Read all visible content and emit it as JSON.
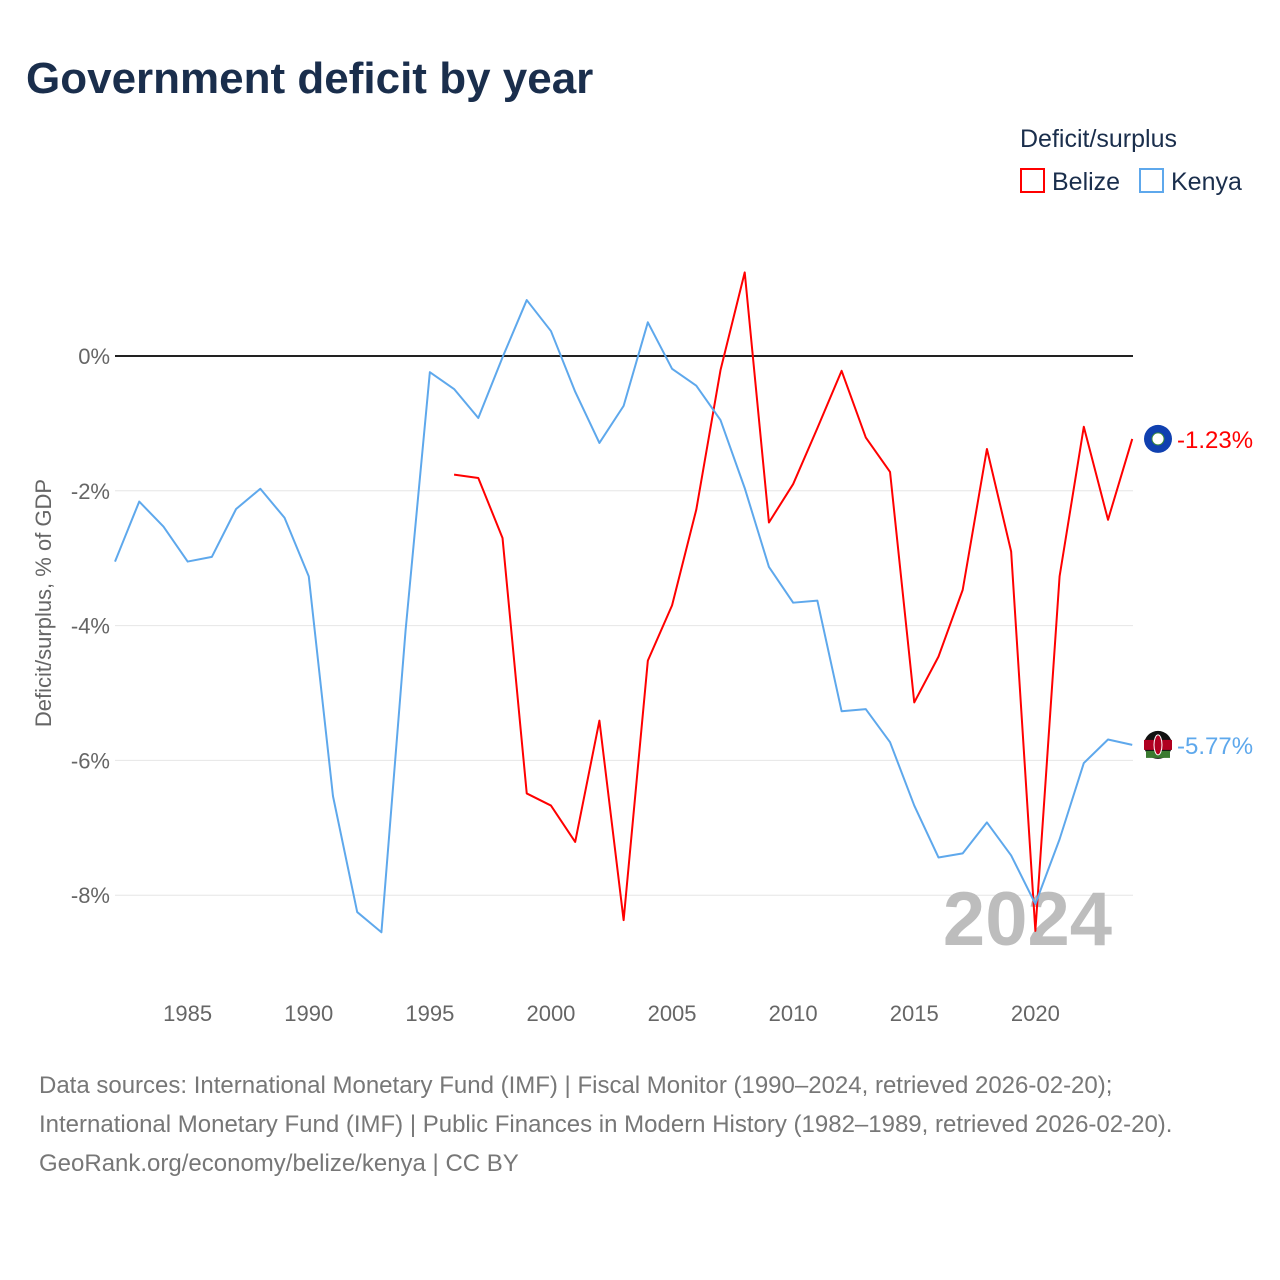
{
  "chart_data": {
    "type": "line",
    "title": "Government deficit by year",
    "ylabel": "Deficit/surplus, % of GDP",
    "xlabel": "",
    "ylim": [
      -9.3,
      1.8
    ],
    "xlim": [
      1982,
      2024
    ],
    "yticks": [
      0,
      -2,
      -4,
      -6,
      -8
    ],
    "ytick_labels": [
      "0%",
      "-2%",
      "-4%",
      "-6%",
      "-8%"
    ],
    "xticks": [
      1985,
      1990,
      1995,
      2000,
      2005,
      2010,
      2015,
      2020
    ],
    "xtick_labels": [
      "1985",
      "1990",
      "1995",
      "2000",
      "2005",
      "2010",
      "2015",
      "2020"
    ],
    "grid": true,
    "legend_title": "Deficit/surplus",
    "legend_position": "top-right",
    "year_label": "2024",
    "series": [
      {
        "name": "Belize",
        "color": "#ff0000",
        "end_label": "-1.23%",
        "x": [
          1996,
          1997,
          1998,
          1999,
          2000,
          2001,
          2002,
          2003,
          2004,
          2005,
          2006,
          2007,
          2008,
          2009,
          2010,
          2011,
          2012,
          2013,
          2014,
          2015,
          2016,
          2017,
          2018,
          2019,
          2020,
          2021,
          2022,
          2023,
          2024
        ],
        "values": [
          -1.76,
          -1.81,
          -2.7,
          -6.49,
          -6.67,
          -7.21,
          -5.41,
          -8.37,
          -4.52,
          -3.7,
          -2.28,
          -0.21,
          1.24,
          -2.47,
          -1.9,
          -1.07,
          -0.22,
          -1.21,
          -1.72,
          -5.14,
          -4.46,
          -3.47,
          -1.38,
          -2.9,
          -8.53,
          -3.27,
          -1.05,
          -2.43,
          -1.23
        ]
      },
      {
        "name": "Kenya",
        "color": "#5ea8ec",
        "end_label": "-5.77%",
        "x": [
          1982,
          1983,
          1984,
          1985,
          1986,
          1987,
          1988,
          1989,
          1990,
          1991,
          1992,
          1993,
          1994,
          1995,
          1996,
          1997,
          1998,
          1999,
          2000,
          2001,
          2002,
          2003,
          2004,
          2005,
          2006,
          2007,
          2008,
          2009,
          2010,
          2011,
          2012,
          2013,
          2014,
          2015,
          2016,
          2017,
          2018,
          2019,
          2020,
          2021,
          2022,
          2023,
          2024
        ],
        "values": [
          -3.05,
          -2.16,
          -2.53,
          -3.05,
          -2.98,
          -2.27,
          -1.97,
          -2.4,
          -3.27,
          -6.53,
          -8.25,
          -8.55,
          -4.06,
          -0.24,
          -0.49,
          -0.92,
          -0.02,
          0.83,
          0.37,
          -0.53,
          -1.29,
          -0.74,
          0.5,
          -0.19,
          -0.44,
          -0.95,
          -1.96,
          -3.13,
          -3.66,
          -3.63,
          -5.27,
          -5.24,
          -5.73,
          -6.67,
          -7.44,
          -7.38,
          -6.92,
          -7.41,
          -8.13,
          -7.17,
          -6.04,
          -5.69,
          -5.77
        ]
      }
    ]
  },
  "footer": {
    "sources": "Data sources: International Monetary Fund (IMF) | Fiscal Monitor (1990–2024, retrieved 2026-02-20); International Monetary Fund (IMF) | Public Finances in Modern History (1982–1989, retrieved 2026-02-20).",
    "credit": "GeoRank.org/economy/belize/kenya | CC BY"
  }
}
